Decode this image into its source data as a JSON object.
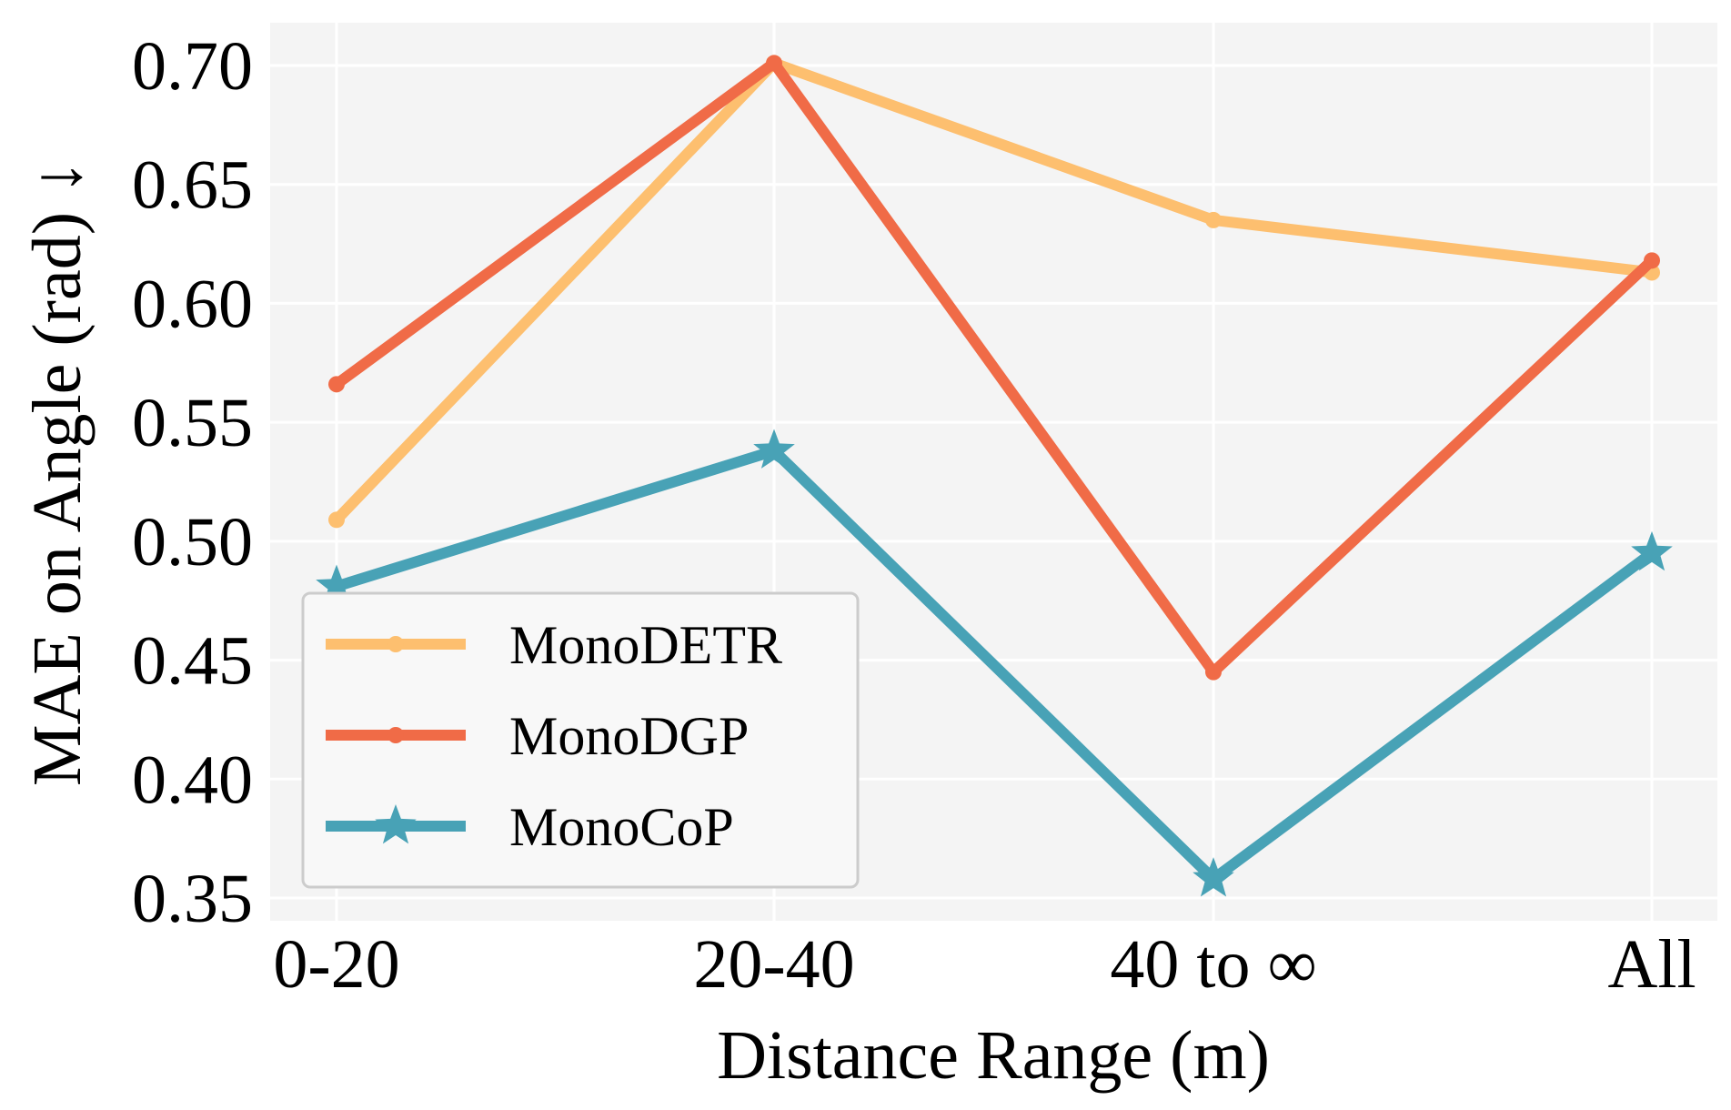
{
  "chart_data": {
    "type": "line",
    "title": "",
    "xlabel": "Distance Range (m)",
    "ylabel": "MAE on Angle (rad)  ↓",
    "categories": [
      "0-20",
      "20-40",
      "40 to ∞",
      "All"
    ],
    "ylim": [
      0.34,
      0.71
    ],
    "yticks": [
      "0.35",
      "0.40",
      "0.45",
      "0.50",
      "0.55",
      "0.60",
      "0.65",
      "0.70"
    ],
    "grid": true,
    "legend_position": "lower-left",
    "series": [
      {
        "name": "MonoDETR",
        "values": [
          0.509,
          0.701,
          0.635,
          0.613
        ],
        "color": "#FDBF6F",
        "marker": "circle"
      },
      {
        "name": "MonoDGP",
        "values": [
          0.566,
          0.701,
          0.445,
          0.618
        ],
        "color": "#F06B47",
        "marker": "circle"
      },
      {
        "name": "MonoCoP",
        "values": [
          0.481,
          0.538,
          0.358,
          0.495
        ],
        "color": "#48A2B6",
        "marker": "star"
      }
    ]
  }
}
